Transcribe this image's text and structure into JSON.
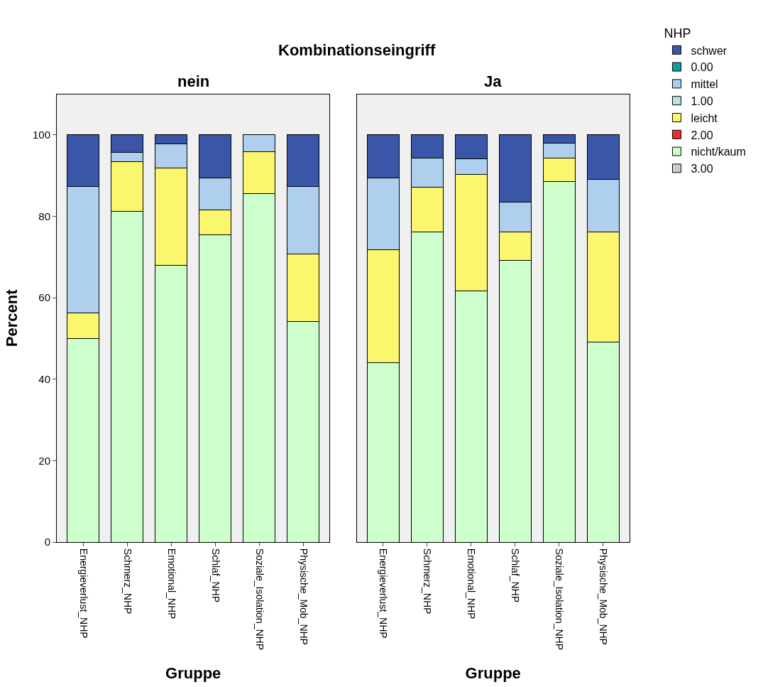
{
  "chart_data": [
    {
      "type": "bar",
      "title": "nein",
      "annotations": [
        "Kombinationseingriff"
      ],
      "xlabel": "Gruppe",
      "ylabel": "Percent",
      "stacked": true,
      "ylim": [
        0,
        110
      ],
      "yticks": [
        0,
        20,
        40,
        60,
        80,
        100
      ],
      "grid": false,
      "categories": [
        "Energieverlust_NHP",
        "Schmerz_NHP",
        "Emotional_NHP",
        "Schlaf_NHP",
        "Soziale_Isolation_NHP",
        "Physische_Mob_NHP"
      ],
      "series": [
        {
          "color": "#ccffcc",
          "values": [
            50.0,
            81.2,
            67.9,
            75.4,
            85.6,
            54.2
          ]
        },
        {
          "color": "#faf66e",
          "values": [
            6.2,
            12.3,
            23.9,
            6.2,
            10.3,
            16.5
          ]
        },
        {
          "color": "#aed0ee",
          "values": [
            31.2,
            2.3,
            6.0,
            7.9,
            4.1,
            16.7
          ]
        },
        {
          "color": "#3a56a8",
          "values": [
            12.6,
            4.2,
            2.2,
            10.5,
            null,
            12.6
          ]
        }
      ]
    },
    {
      "type": "bar",
      "title": "Ja",
      "xlabel": "Gruppe",
      "legend_title": "NHP",
      "stacked": true,
      "ylim": [
        0,
        110
      ],
      "yticks": [
        0,
        20,
        40,
        60,
        80,
        100
      ],
      "tick_labels": "x",
      "grid": false,
      "legend": "top right",
      "categories": [
        "Energieverlust_NHP",
        "Schmerz_NHP",
        "Emotional_NHP",
        "Schlaf_NHP",
        "Soziale_Isolation_NHP",
        "Physische_Mob_NHP"
      ],
      "series": [
        {
          "name": "3.00",
          "color": "#cccccc",
          "values": [
            null,
            null,
            null,
            null,
            null,
            null
          ]
        },
        {
          "name": "nicht/kaum",
          "color": "#ccffcc",
          "values": [
            44.0,
            76.2,
            61.6,
            69.2,
            88.6,
            49.2
          ]
        },
        {
          "name": "2.00",
          "color": "#ee2a2a",
          "values": [
            null,
            null,
            null,
            null,
            null,
            null
          ]
        },
        {
          "name": "leicht",
          "color": "#faf66e",
          "values": [
            27.8,
            11.0,
            28.7,
            7.0,
            5.7,
            26.9
          ]
        },
        {
          "name": "1.00",
          "color": "#b4e6e4",
          "values": [
            null,
            null,
            null,
            null,
            null,
            null
          ]
        },
        {
          "name": "mittel",
          "color": "#aed0ee",
          "values": [
            17.6,
            7.1,
            3.8,
            7.3,
            3.6,
            12.9
          ]
        },
        {
          "name": "0.00",
          "color": "#10a09a",
          "values": [
            null,
            null,
            null,
            null,
            null,
            null
          ]
        },
        {
          "name": "schwer",
          "color": "#3a56a8",
          "values": [
            10.6,
            5.7,
            5.9,
            16.5,
            2.1,
            11.0
          ]
        }
      ]
    }
  ]
}
